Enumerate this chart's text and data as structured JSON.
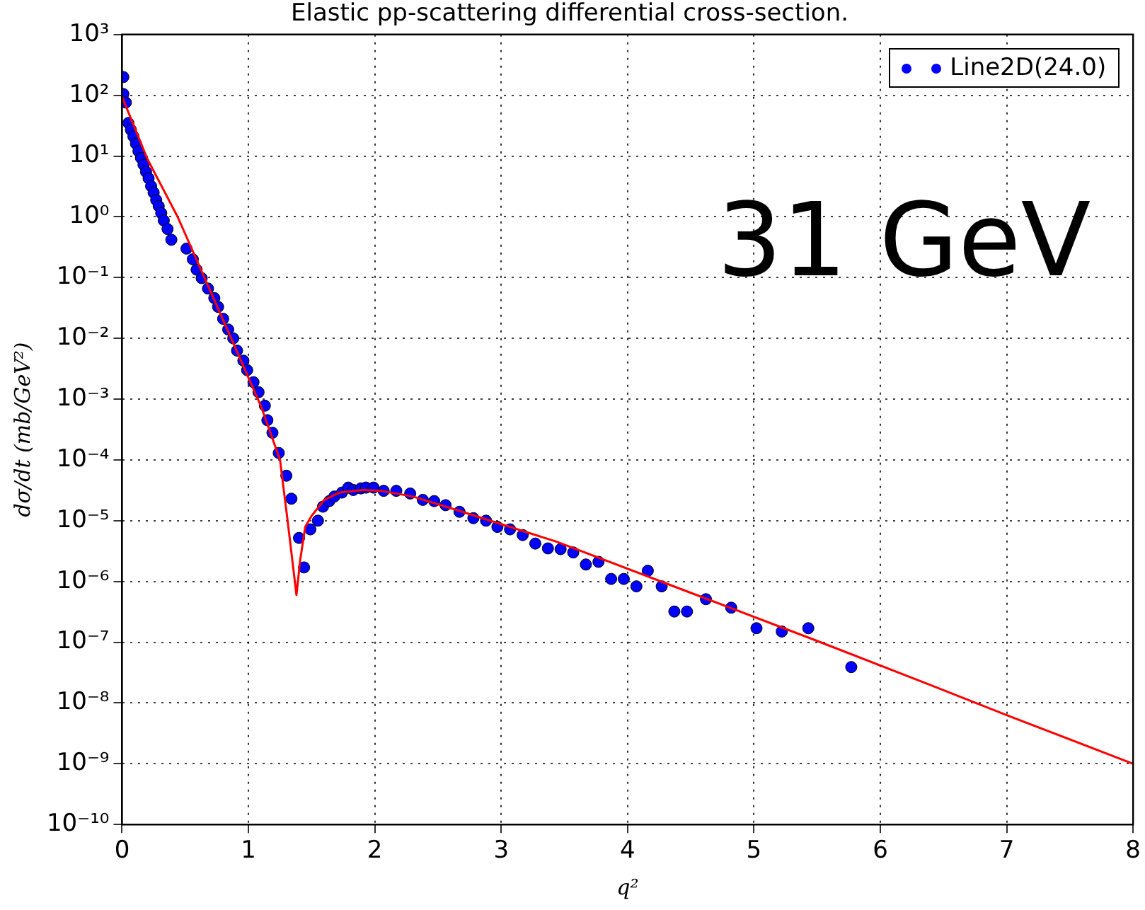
{
  "chart_data": {
    "type": "scatter",
    "title": "Elastic pp-scattering differential cross-section.",
    "xlabel": "q²",
    "ylabel": "dσ/dt (mb/GeV²)",
    "log": "y",
    "grid": true,
    "legend": "top right",
    "xlim": [
      0,
      8
    ],
    "xticks": [
      0,
      1,
      2,
      3,
      4,
      5,
      6,
      7,
      8
    ],
    "ylim": [
      1e-10,
      1000
    ],
    "yticks": [
      {
        "value": 1e-10,
        "label": "10⁻¹⁰"
      },
      {
        "value": 1e-09,
        "label": "10⁻⁹"
      },
      {
        "value": 1e-08,
        "label": "10⁻⁸"
      },
      {
        "value": 1e-07,
        "label": "10⁻⁷"
      },
      {
        "value": 1e-06,
        "label": "10⁻⁶"
      },
      {
        "value": 1e-05,
        "label": "10⁻⁵"
      },
      {
        "value": 0.0001,
        "label": "10⁻⁴"
      },
      {
        "value": 0.001,
        "label": "10⁻³"
      },
      {
        "value": 0.01,
        "label": "10⁻²"
      },
      {
        "value": 0.1,
        "label": "10⁻¹"
      },
      {
        "value": 1,
        "label": "10⁰"
      },
      {
        "value": 10,
        "label": "10¹"
      },
      {
        "value": 100,
        "label": "10²"
      },
      {
        "value": 1000,
        "label": "10³"
      }
    ],
    "annotations": [
      "31 GeV"
    ],
    "series": [
      {
        "name": "Line2D(24.0)",
        "marker": "circle",
        "color": "#0000ff",
        "x": [
          0.01,
          0.01,
          0.03,
          0.05,
          0.07,
          0.09,
          0.11,
          0.13,
          0.15,
          0.17,
          0.19,
          0.21,
          0.23,
          0.25,
          0.27,
          0.29,
          0.31,
          0.33,
          0.36,
          0.39,
          0.51,
          0.56,
          0.59,
          0.63,
          0.68,
          0.73,
          0.76,
          0.8,
          0.84,
          0.88,
          0.91,
          0.96,
          0.99,
          1.04,
          1.08,
          1.13,
          1.15,
          1.19,
          1.24,
          1.3,
          1.34,
          1.4,
          1.44,
          1.49,
          1.55,
          1.59,
          1.64,
          1.68,
          1.74,
          1.79,
          1.83,
          1.89,
          1.93,
          1.99,
          2.07,
          2.17,
          2.28,
          2.38,
          2.47,
          2.56,
          2.67,
          2.78,
          2.88,
          2.97,
          3.07,
          3.17,
          3.27,
          3.37,
          3.47,
          3.57,
          3.67,
          3.77,
          3.87,
          3.97,
          4.07,
          4.16,
          4.27,
          4.37,
          4.47,
          4.62,
          4.82,
          5.02,
          5.22,
          5.43,
          5.77
        ],
        "values": [
          200,
          105,
          76,
          35,
          27,
          21,
          16,
          12,
          9.3,
          7.2,
          5.5,
          4.3,
          3.2,
          2.5,
          1.9,
          1.5,
          1.15,
          0.87,
          0.63,
          0.42,
          0.3,
          0.2,
          0.135,
          0.098,
          0.066,
          0.046,
          0.033,
          0.021,
          0.014,
          0.01,
          0.0063,
          0.0043,
          0.003,
          0.0019,
          0.0013,
          0.00078,
          0.00045,
          0.00028,
          0.00013,
          5.5e-05,
          2.3e-05,
          5.2e-06,
          1.7e-06,
          7.2e-06,
          1e-05,
          1.7e-05,
          2.1e-05,
          2.5e-05,
          2.9e-05,
          3.5e-05,
          3.2e-05,
          3.4e-05,
          3.5e-05,
          3.5e-05,
          3.1e-05,
          3.1e-05,
          2.8e-05,
          2.2e-05,
          2.1e-05,
          1.8e-05,
          1.4e-05,
          1.1e-05,
          1e-05,
          7.9e-06,
          7.2e-06,
          5.8e-06,
          4.2e-06,
          3.5e-06,
          3.4e-06,
          3e-06,
          1.9e-06,
          2.1e-06,
          1.1e-06,
          1.1e-06,
          8.3e-07,
          1.5e-06,
          8.3e-07,
          3.2e-07,
          3.2e-07,
          5.1e-07,
          3.7e-07,
          1.7e-07,
          1.5e-07,
          1.7e-07,
          3.9e-08
        ]
      },
      {
        "type": "line",
        "marker": "none",
        "line_style": "solid",
        "color": "#ff0000",
        "x": [
          0,
          0.2,
          0.44,
          0.8,
          1.1,
          1.25,
          1.31,
          1.38,
          1.41,
          1.45,
          1.5,
          1.6,
          1.72,
          1.9,
          2.05,
          2.3,
          2.67,
          3.44,
          4.5,
          5.5,
          6.39,
          7,
          8
        ],
        "values": [
          95,
          9,
          1,
          0.02,
          0.00076,
          0.0001,
          1e-05,
          6e-07,
          2.3e-06,
          8e-06,
          1.2e-05,
          2.2e-05,
          2.9e-05,
          3.2e-05,
          3.1e-05,
          2.5e-05,
          1.45e-05,
          4.5e-06,
          6.5e-07,
          1.05e-07,
          2e-08,
          6.3e-09,
          1e-09
        ]
      }
    ]
  }
}
